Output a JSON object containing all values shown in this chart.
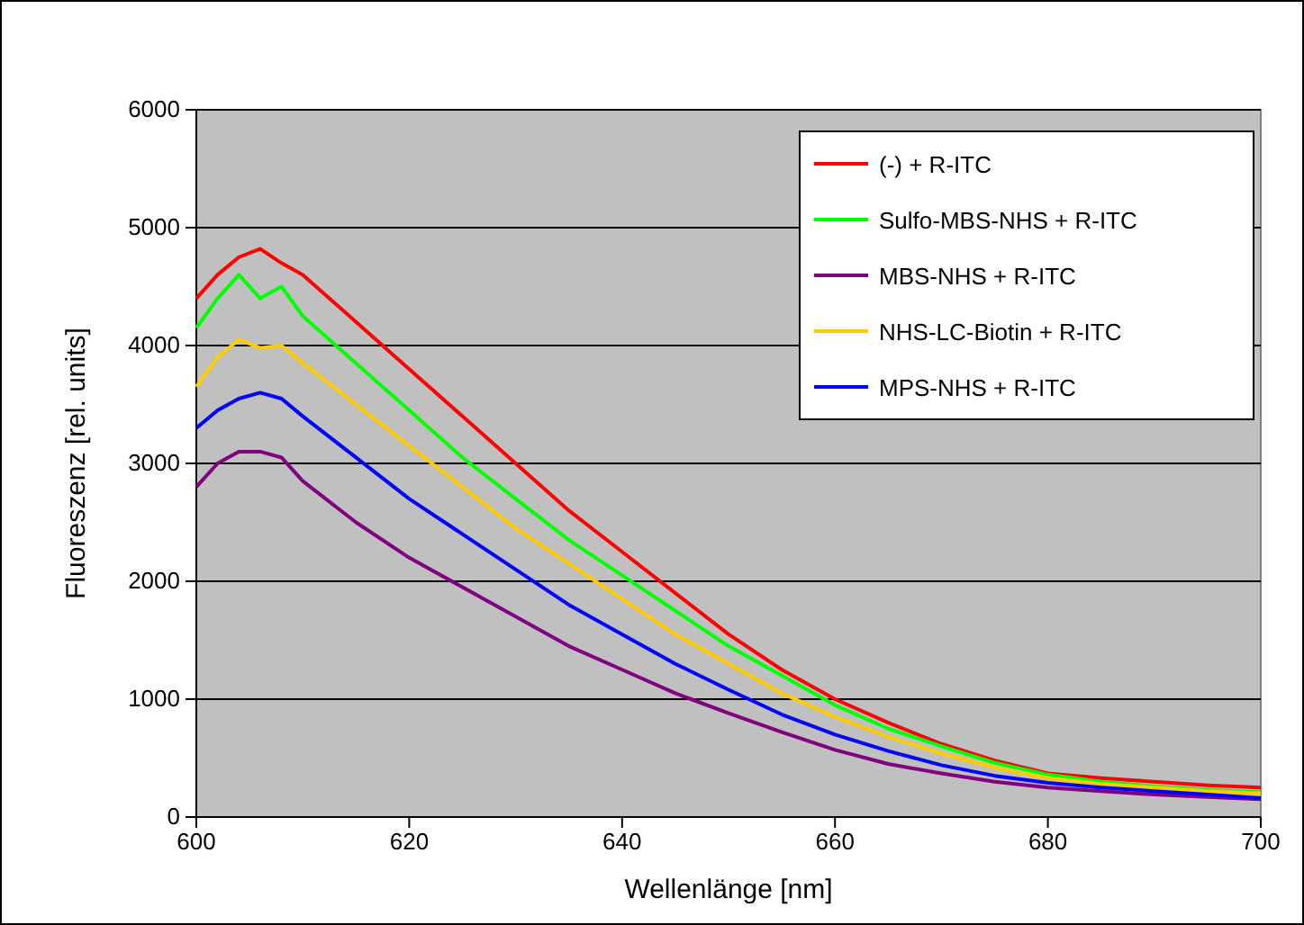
{
  "chart_data": {
    "type": "line",
    "xlabel": "Wellenlänge [nm]",
    "ylabel": "Fluoreszenz [rel. units]",
    "xlim": [
      600,
      700
    ],
    "ylim": [
      0,
      6000
    ],
    "xticks": [
      600,
      620,
      640,
      660,
      680,
      700
    ],
    "yticks": [
      0,
      1000,
      2000,
      3000,
      4000,
      5000,
      6000
    ],
    "grid": "y",
    "legend": "top right",
    "marker": "none",
    "line_style": "solid",
    "x": [
      600,
      602,
      604,
      606,
      608,
      610,
      615,
      620,
      625,
      630,
      635,
      640,
      645,
      650,
      655,
      660,
      665,
      670,
      675,
      680,
      685,
      690,
      695,
      700
    ],
    "series": [
      {
        "name": "(-) + R-ITC",
        "color": "#ff0000",
        "values": [
          4400,
          4600,
          4750,
          4820,
          4700,
          4600,
          4200,
          3800,
          3400,
          3000,
          2600,
          2250,
          1900,
          1550,
          1250,
          1000,
          800,
          620,
          480,
          370,
          330,
          300,
          270,
          250
        ]
      },
      {
        "name": "Sulfo-MBS-NHS + R-ITC",
        "color": "#00ff00",
        "values": [
          4150,
          4400,
          4600,
          4400,
          4500,
          4250,
          3850,
          3450,
          3050,
          2700,
          2350,
          2050,
          1750,
          1450,
          1200,
          950,
          750,
          600,
          460,
          360,
          300,
          260,
          230,
          210
        ]
      },
      {
        "name": "MBS-NHS + R-ITC",
        "color": "#800080",
        "values": [
          2800,
          3000,
          3100,
          3100,
          3050,
          2850,
          2500,
          2200,
          1950,
          1700,
          1450,
          1250,
          1050,
          880,
          720,
          570,
          450,
          370,
          300,
          250,
          220,
          190,
          170,
          150
        ]
      },
      {
        "name": "NHS-LC-Biotin + R-ITC",
        "color": "#ffcc00",
        "values": [
          3650,
          3900,
          4050,
          3980,
          4000,
          3850,
          3500,
          3150,
          2800,
          2450,
          2150,
          1850,
          1550,
          1300,
          1050,
          850,
          680,
          540,
          420,
          330,
          280,
          250,
          220,
          200
        ]
      },
      {
        "name": "MPS-NHS + R-ITC",
        "color": "#0000ff",
        "values": [
          3300,
          3450,
          3550,
          3600,
          3550,
          3400,
          3050,
          2700,
          2400,
          2100,
          1800,
          1550,
          1300,
          1080,
          870,
          700,
          560,
          440,
          350,
          290,
          250,
          220,
          190,
          160
        ]
      }
    ]
  }
}
